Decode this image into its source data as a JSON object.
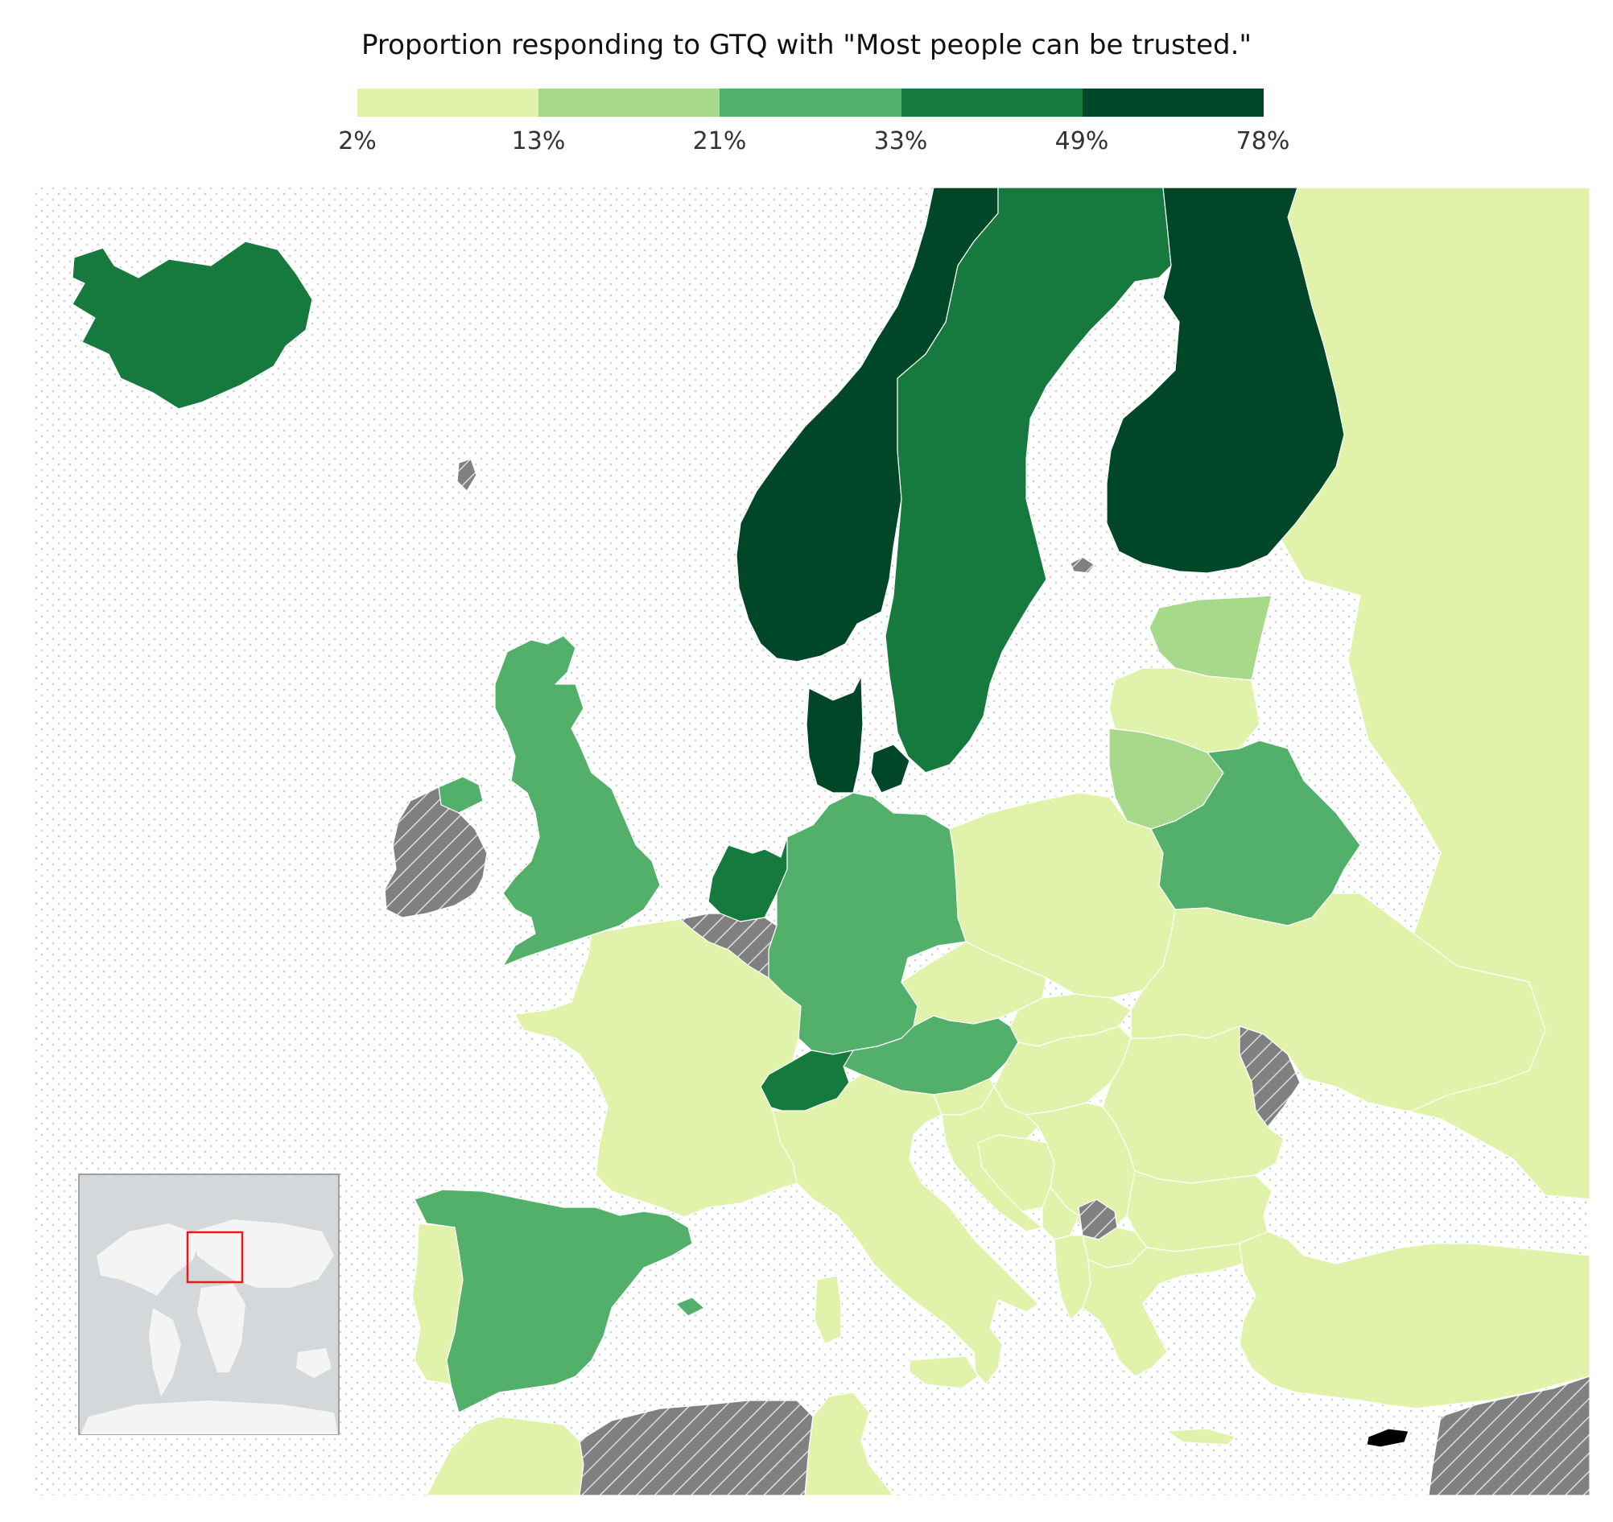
{
  "title": "Proportion responding to GTQ with \"Most people can be trusted.\"",
  "legend": {
    "ticks": [
      "2%",
      "13%",
      "21%",
      "33%",
      "49%",
      "78%"
    ],
    "colors": [
      "#e1f3aa",
      "#a6da8a",
      "#52b06a",
      "#167a3e",
      "#00472a"
    ],
    "no_data_color": "#808080",
    "no_data_hatch": "#dddddd",
    "sea_dots": "#d3d3d3"
  },
  "map": {
    "region": "Europe",
    "countries": [
      {
        "name": "Iceland",
        "bin": 3
      },
      {
        "name": "Norway",
        "bin": 4
      },
      {
        "name": "Sweden",
        "bin": 3
      },
      {
        "name": "Finland",
        "bin": 4
      },
      {
        "name": "Denmark",
        "bin": 4
      },
      {
        "name": "Netherlands",
        "bin": 3
      },
      {
        "name": "Switzerland",
        "bin": 3
      },
      {
        "name": "Estonia",
        "bin": 1
      },
      {
        "name": "Lithuania",
        "bin": 1
      },
      {
        "name": "Belarus",
        "bin": 2
      },
      {
        "name": "Germany",
        "bin": 2
      },
      {
        "name": "United Kingdom",
        "bin": 2
      },
      {
        "name": "Austria",
        "bin": 2
      },
      {
        "name": "Spain",
        "bin": 2
      },
      {
        "name": "Latvia",
        "bin": 0
      },
      {
        "name": "Poland",
        "bin": 0
      },
      {
        "name": "Czechia",
        "bin": 0
      },
      {
        "name": "Slovakia",
        "bin": 0
      },
      {
        "name": "Hungary",
        "bin": 0
      },
      {
        "name": "Ukraine",
        "bin": 0
      },
      {
        "name": "France",
        "bin": 0
      },
      {
        "name": "Italy",
        "bin": 0
      },
      {
        "name": "Slovenia",
        "bin": 0
      },
      {
        "name": "Croatia",
        "bin": 0
      },
      {
        "name": "Bosnia and Herzegovina",
        "bin": 0
      },
      {
        "name": "Serbia",
        "bin": 0
      },
      {
        "name": "Montenegro",
        "bin": 0
      },
      {
        "name": "North Macedonia",
        "bin": 0
      },
      {
        "name": "Albania",
        "bin": 0
      },
      {
        "name": "Greece",
        "bin": 0
      },
      {
        "name": "Bulgaria",
        "bin": 0
      },
      {
        "name": "Romania",
        "bin": 0
      },
      {
        "name": "Portugal",
        "bin": 0
      },
      {
        "name": "Russia",
        "bin": 0
      },
      {
        "name": "Turkey",
        "bin": 0
      },
      {
        "name": "Morocco",
        "bin": 0
      },
      {
        "name": "Tunisia",
        "bin": 0
      },
      {
        "name": "Ireland",
        "bin": null
      },
      {
        "name": "Belgium",
        "bin": null
      },
      {
        "name": "Moldova",
        "bin": null
      },
      {
        "name": "Kosovo",
        "bin": null
      },
      {
        "name": "Algeria",
        "bin": null
      },
      {
        "name": "Syria",
        "bin": null
      },
      {
        "name": "Faroe Islands",
        "bin": null
      },
      {
        "name": "Åland",
        "bin": null
      }
    ],
    "inset": {
      "label": "world locator",
      "highlight_color": "#e41a1c"
    }
  }
}
